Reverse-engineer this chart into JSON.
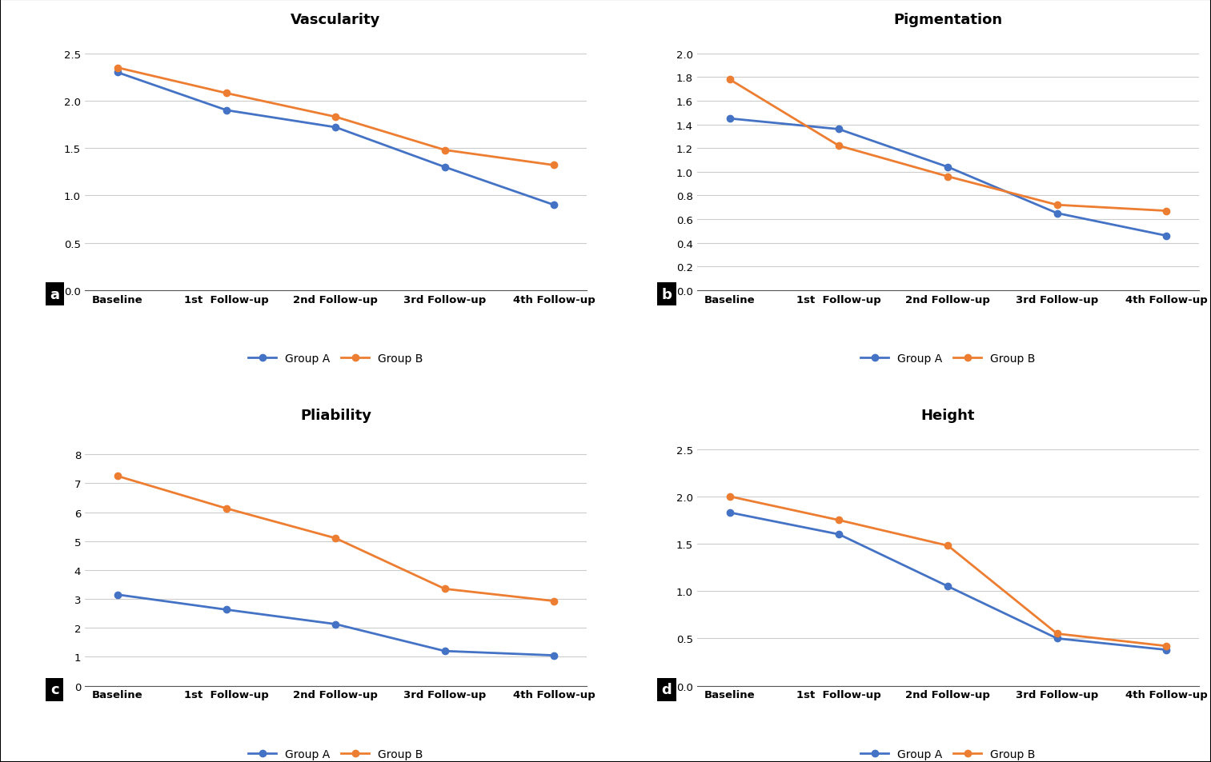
{
  "x_labels": [
    "Baseline",
    "1st  Follow-up",
    "2nd Follow-up",
    "3rd Follow-up",
    "4th Follow-up"
  ],
  "vascularity": {
    "title": "Vascularity",
    "group_a": [
      2.3,
      1.9,
      1.72,
      1.3,
      0.9
    ],
    "group_b": [
      2.35,
      2.08,
      1.83,
      1.48,
      1.32
    ],
    "ylim": [
      0,
      2.75
    ],
    "yticks": [
      0,
      0.5,
      1.0,
      1.5,
      2.0,
      2.5
    ]
  },
  "pigmentation": {
    "title": "Pigmentation",
    "group_a": [
      1.45,
      1.36,
      1.04,
      0.65,
      0.46
    ],
    "group_b": [
      1.78,
      1.22,
      0.96,
      0.72,
      0.67
    ],
    "ylim": [
      0,
      2.2
    ],
    "yticks": [
      0,
      0.2,
      0.4,
      0.6,
      0.8,
      1.0,
      1.2,
      1.4,
      1.6,
      1.8,
      2.0
    ]
  },
  "pliability": {
    "title": "Pliability",
    "group_a": [
      3.15,
      2.63,
      2.13,
      1.2,
      1.05
    ],
    "group_b": [
      7.25,
      6.13,
      5.1,
      3.35,
      2.93
    ],
    "ylim": [
      0,
      9.0
    ],
    "yticks": [
      0,
      1,
      2,
      3,
      4,
      5,
      6,
      7,
      8
    ]
  },
  "height": {
    "title": "Height",
    "group_a": [
      1.83,
      1.6,
      1.05,
      0.5,
      0.38
    ],
    "group_b": [
      2.0,
      1.75,
      1.48,
      0.55,
      0.42
    ],
    "ylim": [
      0,
      2.75
    ],
    "yticks": [
      0,
      0.5,
      1.0,
      1.5,
      2.0,
      2.5
    ]
  },
  "color_a": "#4472C4",
  "color_b": "#ED7D31",
  "label_a": "Group A",
  "label_b": "Group B",
  "title_fontsize": 13,
  "tick_fontsize": 9.5,
  "legend_fontsize": 10,
  "line_width": 2.0,
  "marker_size": 6,
  "background_color": "#FFFFFF",
  "panel_labels": [
    "a",
    "b",
    "c",
    "d"
  ],
  "grid_color": "#CCCCCC",
  "border_color": "#000000"
}
